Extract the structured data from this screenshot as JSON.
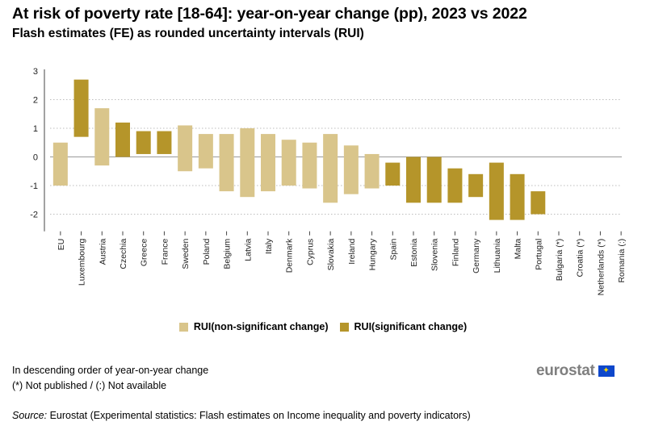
{
  "title": "At risk of poverty rate [18-64]: year-on-year change (pp), 2023 vs 2022",
  "subtitle": "Flash estimates (FE) as rounded uncertainty intervals (RUI)",
  "legend": {
    "non_significant_label": "RUI(non-significant change)",
    "significant_label": "RUI(significant change)"
  },
  "colors": {
    "non_significant": "#d9c58b",
    "significant": "#b5952a",
    "gridline": "#bdbdbd",
    "zero_line": "#9a9a9a",
    "brand_gray": "#7f7f7f",
    "eu_blue": "#0e47cb",
    "eu_yellow": "#ffdd00"
  },
  "notes": {
    "order": "In descending order of year-on-year change",
    "symbols": "(*) Not published / (:) Not available"
  },
  "source": {
    "label": "Source:",
    "text": " Eurostat (Experimental statistics: Flash estimates on Income inequality and poverty indicators)"
  },
  "brand": {
    "name": "eurostat",
    "flag_icon": "eu-flag-icon"
  },
  "chart_data": {
    "type": "range-bar",
    "title": "At risk of poverty rate [18-64]: year-on-year change (pp), 2023 vs 2022",
    "ylabel": "",
    "xlabel": "",
    "ylim": [
      -2.4,
      3
    ],
    "yticks": [
      3,
      2,
      1,
      0,
      -1,
      -2
    ],
    "grid": true,
    "legend_position": "bottom",
    "categories": [
      "EU",
      "Luxembourg",
      "Austria",
      "Czechia",
      "Greece",
      "France",
      "Sweden",
      "Poland",
      "Belgium",
      "Latvia",
      "Italy",
      "Denmark",
      "Cyprus",
      "Slovakia",
      "Ireland",
      "Hungary",
      "Spain",
      "Estonia",
      "Slovenia",
      "Finland",
      "Germany",
      "Lithuania",
      "Malta",
      "Portugal",
      "Bulgaria (*)",
      "Croatia (*)",
      "Netherlands (*)",
      "Romania (:)"
    ],
    "series": [
      {
        "name": "RUI",
        "low": [
          -1.0,
          0.7,
          -0.3,
          0.0,
          0.1,
          0.1,
          -0.5,
          -0.4,
          -1.2,
          -1.4,
          -1.2,
          -1.0,
          -1.1,
          -1.6,
          -1.3,
          -1.1,
          -1.0,
          -1.6,
          -1.6,
          -1.6,
          -1.4,
          -2.2,
          -2.2,
          -2.0,
          null,
          null,
          null,
          null
        ],
        "high": [
          0.5,
          2.7,
          1.7,
          1.2,
          0.9,
          0.9,
          1.1,
          0.8,
          0.8,
          1.0,
          0.8,
          0.6,
          0.5,
          0.8,
          0.4,
          0.1,
          -0.2,
          0.0,
          0.0,
          -0.4,
          -0.6,
          -0.2,
          -0.6,
          -1.2,
          null,
          null,
          null,
          null
        ],
        "significant": [
          false,
          true,
          false,
          true,
          true,
          true,
          false,
          false,
          false,
          false,
          false,
          false,
          false,
          false,
          false,
          false,
          true,
          true,
          true,
          true,
          true,
          true,
          true,
          true,
          false,
          false,
          false,
          false
        ]
      }
    ]
  }
}
